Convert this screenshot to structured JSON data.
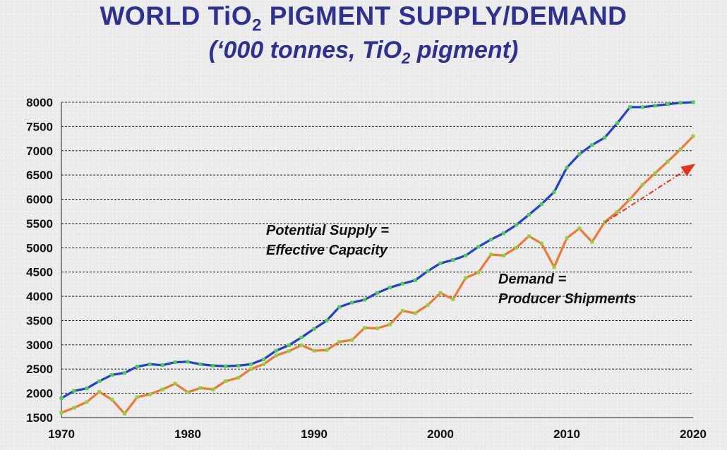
{
  "title": {
    "line1_prefix": "WORLD TiO",
    "line1_sub": "2",
    "line1_suffix": " PIGMENT SUPPLY/DEMAND",
    "line2_prefix": "(‘000 tonnes, TiO",
    "line2_sub": "2",
    "line2_suffix": " pigment)"
  },
  "chart_data": {
    "type": "line",
    "xlim": [
      1970,
      2020
    ],
    "ylim": [
      1500,
      8000
    ],
    "x_ticks": [
      1970,
      1980,
      1990,
      2000,
      2010,
      2020
    ],
    "y_ticks": [
      1500,
      2000,
      2500,
      3000,
      3500,
      4000,
      4500,
      5000,
      5500,
      6000,
      6500,
      7000,
      7500,
      8000
    ],
    "grid": "horizontal dashed",
    "x": [
      1970,
      1971,
      1972,
      1973,
      1974,
      1975,
      1976,
      1977,
      1978,
      1979,
      1980,
      1981,
      1982,
      1983,
      1984,
      1985,
      1986,
      1987,
      1988,
      1989,
      1990,
      1991,
      1992,
      1993,
      1994,
      1995,
      1996,
      1997,
      1998,
      1999,
      2000,
      2001,
      2002,
      2003,
      2004,
      2005,
      2006,
      2007,
      2008,
      2009,
      2010,
      2011,
      2012,
      2013,
      2014,
      2015,
      2016,
      2017,
      2018,
      2019,
      2020
    ],
    "series": [
      {
        "key": "supply",
        "color": "#1f3fd6",
        "marker_color": "#4ad04a",
        "values": [
          1900,
          2050,
          2100,
          2250,
          2380,
          2420,
          2550,
          2600,
          2580,
          2640,
          2650,
          2600,
          2570,
          2560,
          2570,
          2600,
          2700,
          2880,
          2990,
          3150,
          3330,
          3500,
          3780,
          3870,
          3930,
          4070,
          4180,
          4260,
          4330,
          4520,
          4680,
          4750,
          4840,
          5020,
          5170,
          5300,
          5470,
          5680,
          5900,
          6150,
          6650,
          6930,
          7120,
          7270,
          7570,
          7900,
          7900,
          7930,
          7960,
          7990,
          8000
        ]
      },
      {
        "key": "demand",
        "color": "#f07830",
        "marker_color": "#8fd23c",
        "values": [
          1600,
          1700,
          1820,
          2030,
          1870,
          1580,
          1920,
          1980,
          2080,
          2200,
          2020,
          2110,
          2080,
          2250,
          2320,
          2500,
          2600,
          2780,
          2870,
          2990,
          2880,
          2890,
          3060,
          3100,
          3350,
          3340,
          3420,
          3700,
          3650,
          3820,
          4070,
          3940,
          4380,
          4490,
          4860,
          4840,
          5000,
          5240,
          5090,
          4600,
          5200,
          5400,
          5120,
          5530,
          5740,
          6000,
          6300,
          6540,
          6780,
          7030,
          7300
        ]
      }
    ],
    "trend_arrow": {
      "color": "#e8321e",
      "from": [
        2013,
        5520
      ],
      "to": [
        2020,
        6700
      ]
    },
    "annotations": [
      {
        "lines": [
          "Potential Supply =",
          "Effective Capacity"
        ]
      },
      {
        "lines": [
          "Demand =",
          "Producer Shipments"
        ]
      }
    ]
  }
}
